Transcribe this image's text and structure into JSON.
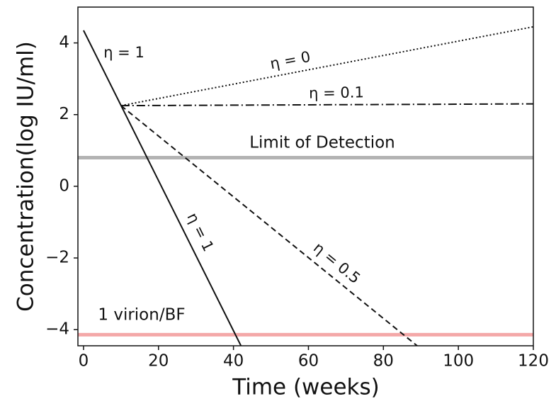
{
  "chart_data": {
    "type": "line",
    "xlabel": "Time (weeks)",
    "ylabel": "Concentration(log IU/ml)",
    "xlim": [
      -1.5,
      120
    ],
    "ylim": [
      -4.45,
      5
    ],
    "xticks": [
      0,
      20,
      40,
      60,
      80,
      100,
      120
    ],
    "yticks": [
      {
        "value": -4,
        "label": "−4"
      },
      {
        "value": -2,
        "label": "−2"
      },
      0,
      2,
      4
    ],
    "series": [
      {
        "name": "η = 1",
        "color": "#111111",
        "linestyle": "solid",
        "x": [
          0,
          42
        ],
        "values": [
          4.35,
          -4.45
        ]
      },
      {
        "name": "η = 0",
        "color": "#111111",
        "linestyle": "dotted",
        "x": [
          10,
          120
        ],
        "values": [
          2.25,
          4.45
        ]
      },
      {
        "name": "η = 0.1",
        "color": "#111111",
        "linestyle": "dashdot",
        "x": [
          10,
          120
        ],
        "values": [
          2.25,
          2.3
        ]
      },
      {
        "name": "η = 0.5",
        "color": "#111111",
        "linestyle": "dashed",
        "x": [
          10,
          89
        ],
        "values": [
          2.25,
          -4.45
        ]
      }
    ],
    "reference_lines": [
      {
        "label": "Limit of Detection",
        "value": 0.8,
        "color": "#b3b3b3"
      },
      {
        "label": "1 virion/BF",
        "value": -4.14,
        "color": "#f4a8a8"
      }
    ],
    "annotations": [
      "η = 1"
    ]
  }
}
